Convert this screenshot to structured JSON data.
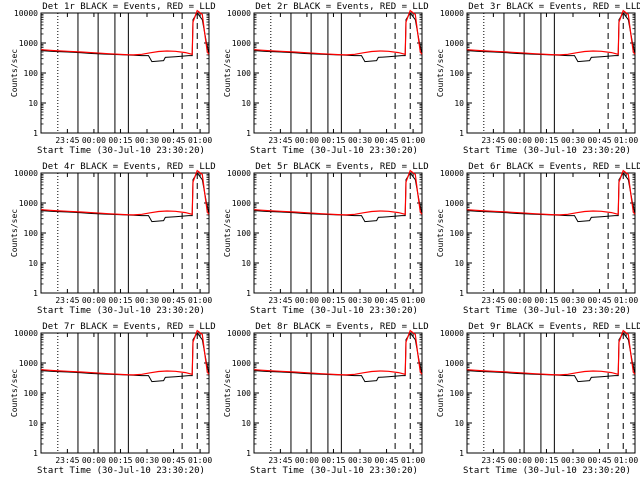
{
  "chart_data": [
    {
      "type": "line",
      "title": "Det 1r BLACK = Events, RED = LLD",
      "xlabel": "Start Time (30-Jul-10 23:30:20)",
      "ylabel": "Counts/sec",
      "yscale": "log",
      "ylim": [
        1,
        10000
      ],
      "xlim": [
        "23:30:20",
        "01:05"
      ],
      "xticks": [
        "23:45",
        "00:00",
        "00:15",
        "00:30",
        "00:45",
        "01:00"
      ],
      "yticks": [
        "1",
        "10",
        "100",
        "1000",
        "10000"
      ],
      "series": [
        {
          "color": "#000000"
        },
        {
          "color": "#ff0000"
        }
      ]
    },
    {
      "type": "line",
      "title": "Det 2r BLACK = Events, RED = LLD",
      "xlabel": "Start Time (30-Jul-10 23:30:20)",
      "ylabel": "Counts/sec",
      "yscale": "log",
      "ylim": [
        1,
        10000
      ],
      "xlim": [
        "23:30:20",
        "01:05"
      ],
      "xticks": [
        "23:45",
        "00:00",
        "00:15",
        "00:30",
        "00:45",
        "01:00"
      ],
      "yticks": [
        "1",
        "10",
        "100",
        "1000",
        "10000"
      ],
      "series": [
        {
          "color": "#000000"
        },
        {
          "color": "#ff0000"
        }
      ]
    },
    {
      "type": "line",
      "title": "Det 3r BLACK = Events, RED = LLD",
      "xlabel": "Start Time (30-Jul-10 23:30:20)",
      "ylabel": "Counts/sec",
      "yscale": "log",
      "ylim": [
        1,
        10000
      ],
      "xlim": [
        "23:30:20",
        "01:05"
      ],
      "xticks": [
        "23:45",
        "00:00",
        "00:15",
        "00:30",
        "00:45",
        "01:00"
      ],
      "yticks": [
        "1",
        "10",
        "100",
        "1000",
        "10000"
      ],
      "series": [
        {
          "color": "#000000"
        },
        {
          "color": "#ff0000"
        }
      ]
    },
    {
      "type": "line",
      "title": "Det 4r BLACK = Events, RED = LLD",
      "xlabel": "Start Time (30-Jul-10 23:30:20)",
      "ylabel": "Counts/sec",
      "yscale": "log",
      "ylim": [
        1,
        10000
      ],
      "xlim": [
        "23:30:20",
        "01:05"
      ],
      "xticks": [
        "23:45",
        "00:00",
        "00:15",
        "00:30",
        "00:45",
        "01:00"
      ],
      "yticks": [
        "1",
        "10",
        "100",
        "1000",
        "10000"
      ],
      "series": [
        {
          "color": "#000000"
        },
        {
          "color": "#ff0000"
        }
      ]
    },
    {
      "type": "line",
      "title": "Det 5r BLACK = Events, RED = LLD",
      "xlabel": "Start Time (30-Jul-10 23:30:20)",
      "ylabel": "Counts/sec",
      "yscale": "log",
      "ylim": [
        1,
        10000
      ],
      "xlim": [
        "23:30:20",
        "01:05"
      ],
      "xticks": [
        "23:45",
        "00:00",
        "00:15",
        "00:30",
        "00:45",
        "01:00"
      ],
      "yticks": [
        "1",
        "10",
        "100",
        "1000",
        "10000"
      ],
      "series": [
        {
          "color": "#000000"
        },
        {
          "color": "#ff0000"
        }
      ]
    },
    {
      "type": "line",
      "title": "Det 6r BLACK = Events, RED = LLD",
      "xlabel": "Start Time (30-Jul-10 23:30:20)",
      "ylabel": "Counts/sec",
      "yscale": "log",
      "ylim": [
        1,
        10000
      ],
      "xlim": [
        "23:30:20",
        "01:05"
      ],
      "xticks": [
        "23:45",
        "00:00",
        "00:15",
        "00:30",
        "00:45",
        "01:00"
      ],
      "yticks": [
        "1",
        "10",
        "100",
        "1000",
        "10000"
      ],
      "series": [
        {
          "color": "#000000"
        },
        {
          "color": "#ff0000"
        }
      ]
    },
    {
      "type": "line",
      "title": "Det 7r BLACK = Events, RED = LLD",
      "xlabel": "Start Time (30-Jul-10 23:30:20)",
      "ylabel": "Counts/sec",
      "yscale": "log",
      "ylim": [
        1,
        10000
      ],
      "xlim": [
        "23:30:20",
        "01:05"
      ],
      "xticks": [
        "23:45",
        "00:00",
        "00:15",
        "00:30",
        "00:45",
        "01:00"
      ],
      "yticks": [
        "1",
        "10",
        "100",
        "1000",
        "10000"
      ],
      "series": [
        {
          "color": "#000000"
        },
        {
          "color": "#ff0000"
        }
      ]
    },
    {
      "type": "line",
      "title": "Det 8r BLACK = Events, RED = LLD",
      "xlabel": "Start Time (30-Jul-10 23:30:20)",
      "ylabel": "Counts/sec",
      "yscale": "log",
      "ylim": [
        1,
        10000
      ],
      "xlim": [
        "23:30:20",
        "01:05"
      ],
      "xticks": [
        "23:45",
        "00:00",
        "00:15",
        "00:30",
        "00:45",
        "01:00"
      ],
      "yticks": [
        "1",
        "10",
        "100",
        "1000",
        "10000"
      ],
      "series": [
        {
          "color": "#000000"
        },
        {
          "color": "#ff0000"
        }
      ]
    },
    {
      "type": "line",
      "title": "Det 9r BLACK = Events, RED = LLD",
      "xlabel": "Start Time (30-Jul-10 23:30:20)",
      "ylabel": "Counts/sec",
      "yscale": "log",
      "ylim": [
        1,
        10000
      ],
      "xlim": [
        "23:30:20",
        "01:05"
      ],
      "xticks": [
        "23:45",
        "00:00",
        "00:15",
        "00:30",
        "00:45",
        "01:00"
      ],
      "yticks": [
        "1",
        "10",
        "100",
        "1000",
        "10000"
      ],
      "series": [
        {
          "color": "#000000"
        },
        {
          "color": "#ff0000"
        }
      ]
    }
  ],
  "shared": {
    "events_values": [
      [
        0.0,
        560
      ],
      [
        0.08,
        520
      ],
      [
        0.16,
        500
      ],
      [
        0.24,
        470
      ],
      [
        0.3,
        445
      ],
      [
        0.4,
        420
      ],
      [
        0.5,
        400
      ],
      [
        0.55,
        390
      ],
      [
        0.6,
        380
      ],
      [
        0.64,
        380
      ],
      [
        0.66,
        240
      ],
      [
        0.73,
        260
      ],
      [
        0.74,
        330
      ],
      [
        0.8,
        350
      ],
      [
        0.88,
        380
      ],
      [
        0.9,
        380
      ],
      [
        0.905,
        6000
      ],
      [
        0.93,
        10000
      ],
      [
        0.96,
        6000
      ],
      [
        0.985,
        1000
      ],
      [
        1.0,
        450
      ]
    ],
    "lld_values": [
      [
        0.0,
        600
      ],
      [
        0.08,
        560
      ],
      [
        0.16,
        530
      ],
      [
        0.24,
        500
      ],
      [
        0.32,
        470
      ],
      [
        0.4,
        440
      ],
      [
        0.5,
        410
      ],
      [
        0.55,
        400
      ],
      [
        0.6,
        420
      ],
      [
        0.65,
        470
      ],
      [
        0.7,
        520
      ],
      [
        0.75,
        540
      ],
      [
        0.8,
        530
      ],
      [
        0.86,
        480
      ],
      [
        0.9,
        420
      ],
      [
        0.905,
        5000
      ],
      [
        0.93,
        12000
      ],
      [
        0.96,
        9000
      ],
      [
        0.975,
        2000
      ],
      [
        0.99,
        500
      ],
      [
        1.0,
        420
      ]
    ],
    "solid_markers": [
      0.22,
      0.34,
      0.44,
      0.52
    ],
    "dotted_markers": [
      0.1
    ],
    "dashed_markers": [
      0.84,
      0.93
    ]
  }
}
